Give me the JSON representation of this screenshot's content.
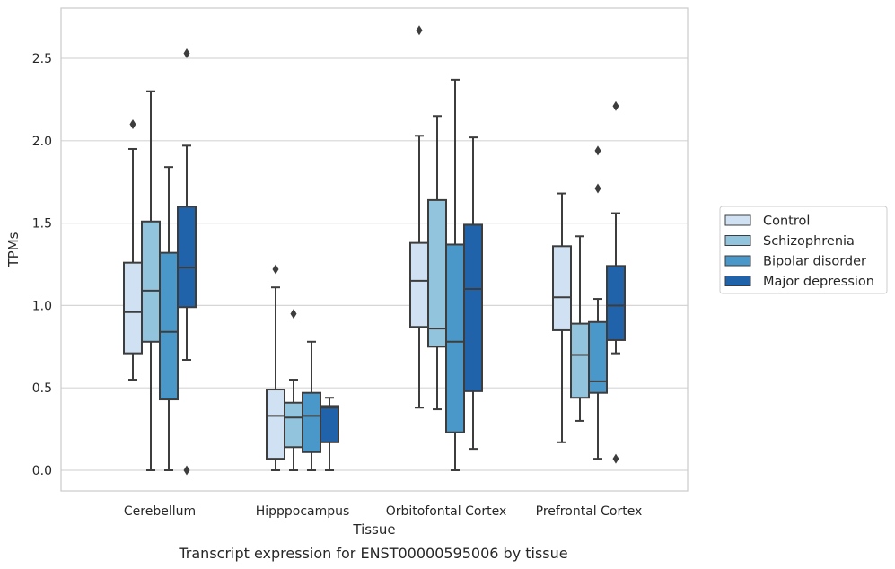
{
  "chart_data": {
    "type": "boxplot",
    "title": "",
    "caption": "Transcript expression for ENST00000595006 by tissue",
    "xlabel": "Tissue",
    "ylabel": "TPMs",
    "ylim": [
      -0.13,
      2.82
    ],
    "yticks": [
      "0.0",
      "0.5",
      "1.0",
      "1.5",
      "2.0",
      "2.5"
    ],
    "grid": true,
    "legend_position": "right",
    "categories": [
      "Cerebellum",
      "Hipppocampus",
      "Orbitofontal Cortex",
      "Prefrontal Cortex"
    ],
    "series": [
      {
        "name": "Control",
        "color": "#cfe1f2",
        "boxes": [
          {
            "whislo": 0.55,
            "q1": 0.71,
            "med": 0.96,
            "q3": 1.26,
            "whishi": 1.95,
            "fliers": [
              2.1
            ]
          },
          {
            "whislo": 0.0,
            "q1": 0.07,
            "med": 0.33,
            "q3": 0.49,
            "whishi": 1.11,
            "fliers": [
              1.22
            ]
          },
          {
            "whislo": 0.38,
            "q1": 0.87,
            "med": 1.15,
            "q3": 1.38,
            "whishi": 2.03,
            "fliers": [
              2.67
            ]
          },
          {
            "whislo": 0.17,
            "q1": 0.85,
            "med": 1.05,
            "q3": 1.36,
            "whishi": 1.68,
            "fliers": []
          }
        ]
      },
      {
        "name": "Schizophrenia",
        "color": "#93c4de",
        "boxes": [
          {
            "whislo": 0.0,
            "q1": 0.78,
            "med": 1.09,
            "q3": 1.51,
            "whishi": 2.3,
            "fliers": []
          },
          {
            "whislo": 0.0,
            "q1": 0.14,
            "med": 0.32,
            "q3": 0.41,
            "whishi": 0.55,
            "fliers": [
              0.95
            ]
          },
          {
            "whislo": 0.37,
            "q1": 0.75,
            "med": 0.86,
            "q3": 1.64,
            "whishi": 2.15,
            "fliers": []
          },
          {
            "whislo": 0.3,
            "q1": 0.44,
            "med": 0.7,
            "q3": 0.89,
            "whishi": 1.42,
            "fliers": []
          }
        ]
      },
      {
        "name": "Bipolar disorder",
        "color": "#4a98c9",
        "boxes": [
          {
            "whislo": 0.0,
            "q1": 0.43,
            "med": 0.84,
            "q3": 1.32,
            "whishi": 1.84,
            "fliers": []
          },
          {
            "whislo": 0.0,
            "q1": 0.11,
            "med": 0.33,
            "q3": 0.47,
            "whishi": 0.78,
            "fliers": []
          },
          {
            "whislo": 0.0,
            "q1": 0.23,
            "med": 0.78,
            "q3": 1.37,
            "whishi": 2.37,
            "fliers": []
          },
          {
            "whislo": 0.07,
            "q1": 0.47,
            "med": 0.54,
            "q3": 0.9,
            "whishi": 1.04,
            "fliers": [
              1.71,
              1.94
            ]
          }
        ]
      },
      {
        "name": "Major depression",
        "color": "#2163aa",
        "boxes": [
          {
            "whislo": 0.67,
            "q1": 0.99,
            "med": 1.23,
            "q3": 1.6,
            "whishi": 1.97,
            "fliers": [
              2.53,
              0.0
            ]
          },
          {
            "whislo": 0.0,
            "q1": 0.17,
            "med": 0.38,
            "q3": 0.39,
            "whishi": 0.44,
            "fliers": []
          },
          {
            "whislo": 0.13,
            "q1": 0.48,
            "med": 1.1,
            "q3": 1.49,
            "whishi": 2.02,
            "fliers": []
          },
          {
            "whislo": 0.71,
            "q1": 0.79,
            "med": 1.0,
            "q3": 1.24,
            "whishi": 1.56,
            "fliers": [
              2.21,
              0.07
            ]
          }
        ]
      }
    ]
  }
}
